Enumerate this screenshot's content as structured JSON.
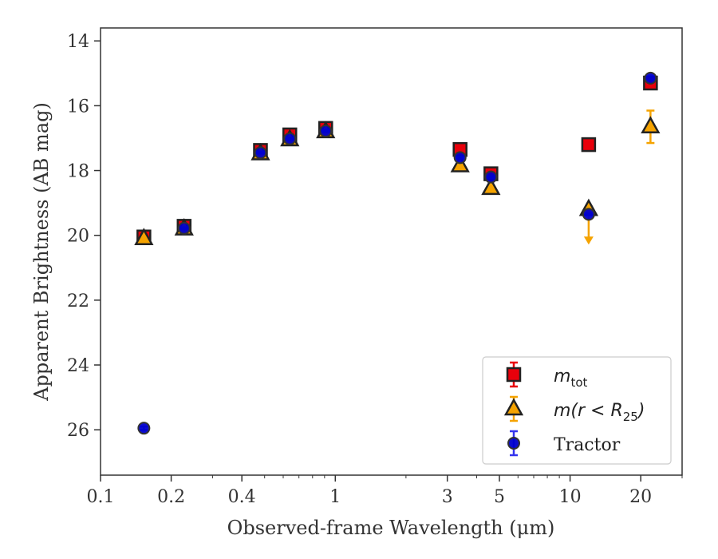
{
  "chart_data": {
    "type": "scatter",
    "xlabel": "Observed-frame Wavelength (μm)",
    "ylabel": "Apparent Brightness (AB mag)",
    "xscale": "log",
    "xlim": [
      0.1,
      30
    ],
    "ylim": [
      27.4,
      13.6
    ],
    "y_inverted": true,
    "xticks": [
      {
        "value": 0.1,
        "label": "0.1"
      },
      {
        "value": 0.2,
        "label": "0.2"
      },
      {
        "value": 0.4,
        "label": "0.4"
      },
      {
        "value": 1,
        "label": "1"
      },
      {
        "value": 3,
        "label": "3"
      },
      {
        "value": 5,
        "label": "5"
      },
      {
        "value": 10,
        "label": "10"
      },
      {
        "value": 20,
        "label": "20"
      }
    ],
    "yticks": [
      {
        "value": 14,
        "label": "14"
      },
      {
        "value": 16,
        "label": "16"
      },
      {
        "value": 18,
        "label": "18"
      },
      {
        "value": 20,
        "label": "20"
      },
      {
        "value": 22,
        "label": "22"
      },
      {
        "value": 24,
        "label": "24"
      },
      {
        "value": 26,
        "label": "26"
      }
    ],
    "legend_position": "lower-right",
    "series": [
      {
        "name": "m_tot",
        "marker": "square",
        "color": "#e8000b",
        "errcolor": "#e8000b",
        "points": [
          {
            "x": 0.153,
            "y": 20.05,
            "err": 0.1
          },
          {
            "x": 0.227,
            "y": 19.72,
            "err": 0.06
          },
          {
            "x": 0.48,
            "y": 17.38,
            "err": 0.05
          },
          {
            "x": 0.64,
            "y": 16.9,
            "err": 0.08
          },
          {
            "x": 0.91,
            "y": 16.7,
            "err": 0.1
          },
          {
            "x": 3.4,
            "y": 17.35,
            "err": 0.05
          },
          {
            "x": 4.6,
            "y": 18.1,
            "err": 0.05
          },
          {
            "x": 12.0,
            "y": 17.2,
            "err": 0.05
          },
          {
            "x": 22.0,
            "y": 15.3,
            "err": 0.1
          }
        ]
      },
      {
        "name": "m(r<R_25)",
        "marker": "triangle",
        "color": "#f5a300",
        "errcolor": "#f5a300",
        "points": [
          {
            "x": 0.153,
            "y": 20.1,
            "err": 0.05
          },
          {
            "x": 0.227,
            "y": 19.8,
            "err": 0.05
          },
          {
            "x": 0.48,
            "y": 17.48,
            "err": 0.05
          },
          {
            "x": 0.64,
            "y": 17.05,
            "err": 0.05
          },
          {
            "x": 0.91,
            "y": 16.8,
            "err": 0.05
          },
          {
            "x": 3.4,
            "y": 17.85,
            "err": 0.05
          },
          {
            "x": 4.6,
            "y": 18.55,
            "err": 0.05
          },
          {
            "x": 12.0,
            "y": 19.2,
            "err": 0.05,
            "upper_limit": true
          },
          {
            "x": 22.0,
            "y": 16.65,
            "err": 0.5
          }
        ]
      },
      {
        "name": "Tractor",
        "marker": "circle",
        "color": "#0000cc",
        "errcolor": "#3333ee",
        "points": [
          {
            "x": 0.153,
            "y": 25.95,
            "err": 0.05
          },
          {
            "x": 0.227,
            "y": 19.78,
            "err": 0.03
          },
          {
            "x": 0.48,
            "y": 17.45,
            "err": 0.03
          },
          {
            "x": 0.64,
            "y": 17.02,
            "err": 0.03
          },
          {
            "x": 0.91,
            "y": 16.78,
            "err": 0.03
          },
          {
            "x": 3.4,
            "y": 17.6,
            "err": 0.03
          },
          {
            "x": 4.6,
            "y": 18.2,
            "err": 0.03
          },
          {
            "x": 12.0,
            "y": 19.35,
            "err": 0.03
          },
          {
            "x": 22.0,
            "y": 15.15,
            "err": 0.05
          }
        ]
      }
    ],
    "legend": [
      {
        "marker": "square",
        "base": "m",
        "sub": "tot",
        "tail": ""
      },
      {
        "marker": "triangle",
        "base": "m(r < R",
        "sub": "25",
        "tail": ")"
      },
      {
        "marker": "circle",
        "base": "Tractor",
        "sub": "",
        "tail": ""
      }
    ]
  }
}
